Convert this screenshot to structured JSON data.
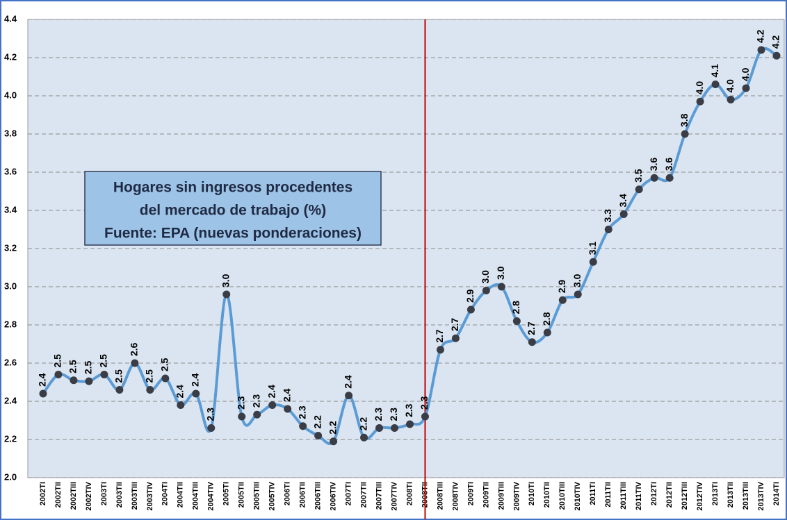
{
  "chart_data": {
    "type": "line",
    "title": [
      "Hogares sin ingresos procedentes",
      "del mercado de trabajo (%)",
      "Fuente: EPA (nuevas ponderaciones)"
    ],
    "categories": [
      "2002TI",
      "2002TII",
      "2002TIII",
      "2002TIV",
      "2003TI",
      "2003TII",
      "2003TIII",
      "2003TIV",
      "2004TI",
      "2004TII",
      "2004TIII",
      "2004TIV",
      "2005TI",
      "2005TII",
      "2005TIII",
      "2005TIV",
      "2006TI",
      "2006TII",
      "2006TIII",
      "2006TIV",
      "2007TI",
      "2007TII",
      "2007TIII",
      "2007TIV",
      "2008TI",
      "2008TII",
      "2008TIII",
      "2008TIV",
      "2009TI",
      "2009TII",
      "2009TIII",
      "2009TIV",
      "2010TI",
      "2010TII",
      "2010TIII",
      "2010TIV",
      "2011TI",
      "2011TII",
      "2011TIII",
      "2011TIV",
      "2012TI",
      "2012TII",
      "2012TIII",
      "2012TIV",
      "2013TI",
      "2013TII",
      "2013TIII",
      "2013TIV",
      "2014TI"
    ],
    "series": [
      {
        "color": "#5b9bd5",
        "values": [
          2.44,
          2.54,
          2.51,
          2.505,
          2.54,
          2.46,
          2.6,
          2.46,
          2.52,
          2.38,
          2.44,
          2.26,
          2.96,
          2.32,
          2.33,
          2.38,
          2.36,
          2.27,
          2.22,
          2.19,
          2.43,
          2.21,
          2.26,
          2.26,
          2.28,
          2.32,
          2.67,
          2.73,
          2.88,
          2.98,
          3.0,
          2.82,
          2.71,
          2.76,
          2.93,
          2.96,
          3.13,
          3.3,
          3.38,
          3.51,
          3.57,
          3.57,
          3.8,
          3.97,
          4.06,
          3.98,
          4.04,
          4.24,
          4.21
        ],
        "value_labels": [
          "2.4",
          "2.5",
          "2.5",
          "2.5",
          "2.5",
          "2.5",
          "2.6",
          "2.5",
          "2.5",
          "2.4",
          "2.4",
          "2.3",
          "3.0",
          "2.3",
          "2.3",
          "2.4",
          "2.4",
          "2.3",
          "2.2",
          "2.2",
          "2.4",
          "2.2",
          "2.3",
          "2.3",
          "2.3",
          "2.3",
          "2.7",
          "2.7",
          "2.9",
          "3.0",
          "3.0",
          "2.8",
          "2.7",
          "2.8",
          "2.9",
          "3.0",
          "3.1",
          "3.3",
          "3.4",
          "3.5",
          "3.6",
          "3.6",
          "3.8",
          "4.0",
          "4.1",
          "4.0",
          "4.0",
          "4.2",
          "4.2"
        ]
      }
    ],
    "ylim": [
      2.0,
      4.4
    ],
    "yticks": [
      {
        "value": 2.0,
        "label": "2.0"
      },
      2.2,
      2.4,
      2.6,
      2.8,
      {
        "value": 3.0,
        "label": "3.0"
      },
      3.2,
      3.4,
      3.6,
      3.8,
      {
        "value": 4.0,
        "label": "4.0"
      },
      4.2,
      4.4
    ],
    "grid": true,
    "vline": {
      "x": "2008TII",
      "color": "#c00000"
    }
  }
}
